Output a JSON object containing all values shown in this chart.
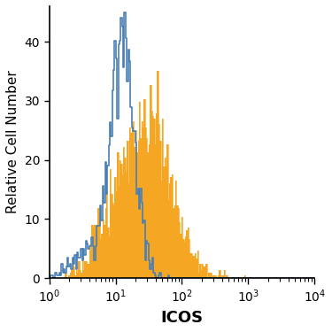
{
  "title": "",
  "xlabel": "ICOS",
  "ylabel": "Relative Cell Number",
  "xlim": [
    1,
    10000
  ],
  "ylim": [
    0,
    46
  ],
  "yticks": [
    0,
    10,
    20,
    30,
    40
  ],
  "blue_color": "#4a7fb5",
  "orange_color": "#f5a623",
  "bg_color": "#ffffff",
  "xlabel_fontsize": 13,
  "ylabel_fontsize": 11,
  "tick_fontsize": 10,
  "blue_peak_height": 45,
  "orange_peak_height": 35
}
